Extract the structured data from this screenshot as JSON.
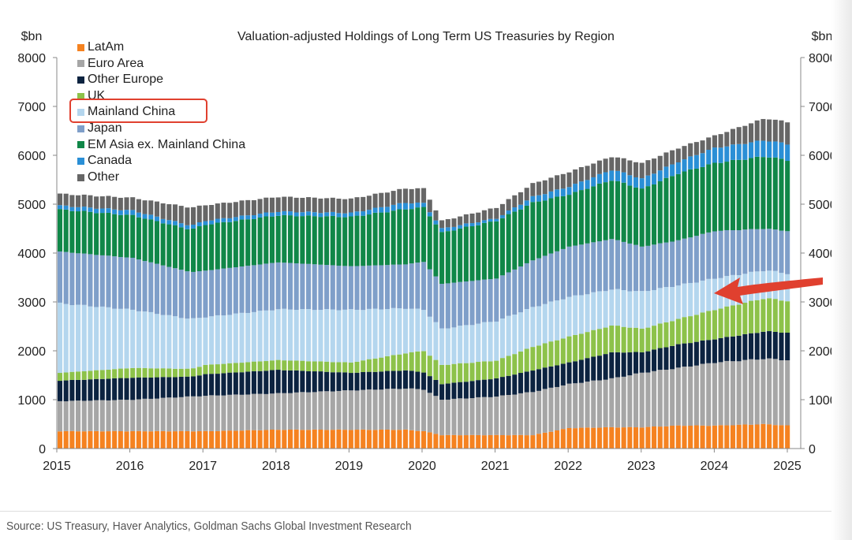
{
  "chart_data": {
    "type": "bar",
    "stacked": true,
    "title": "Valuation-adjusted Holdings of Long Term US Treasuries by Region",
    "ylabel_left": "$bn",
    "ylabel_right": "$bn",
    "ylim": [
      0,
      8000
    ],
    "yticks": [
      "0",
      "1000",
      "2000",
      "3000",
      "4000",
      "5000",
      "6000",
      "7000",
      "8000"
    ],
    "xlim": [
      2015,
      2025
    ],
    "xticks": [
      "2015",
      "2016",
      "2017",
      "2018",
      "2019",
      "2020",
      "2021",
      "2022",
      "2023",
      "2024",
      "2025"
    ],
    "frequency": "monthly (interpolated between anchor dates)",
    "x": [
      2015.0,
      2016.0,
      2016.8,
      2017.0,
      2018.0,
      2019.0,
      2019.75,
      2020.0,
      2020.25,
      2021.0,
      2021.5,
      2022.0,
      2022.6,
      2023.0,
      2023.5,
      2024.0,
      2024.7,
      2025.0
    ],
    "series": [
      {
        "name": "LatAm",
        "color": "#f58220",
        "values": [
          355,
          355,
          355,
          355,
          385,
          385,
          385,
          355,
          275,
          275,
          275,
          420,
          435,
          435,
          470,
          470,
          500,
          470
        ]
      },
      {
        "name": "Euro Area",
        "color": "#a6a6a6",
        "values": [
          615,
          645,
          710,
          725,
          745,
          805,
          845,
          855,
          725,
          790,
          885,
          900,
          1000,
          1115,
          1180,
          1290,
          1340,
          1340
        ]
      },
      {
        "name": "Other Europe",
        "color": "#0c2340",
        "values": [
          420,
          450,
          405,
          440,
          480,
          360,
          370,
          350,
          320,
          370,
          440,
          440,
          535,
          420,
          480,
          480,
          560,
          560
        ]
      },
      {
        "name": "UK",
        "color": "#8dc24a",
        "values": [
          160,
          200,
          160,
          190,
          200,
          210,
          350,
          440,
          390,
          365,
          480,
          530,
          550,
          480,
          520,
          600,
          680,
          650
        ]
      },
      {
        "name": "Mainland China",
        "color": "#b4d6ee",
        "values": [
          1420,
          1190,
          1020,
          980,
          1040,
          1080,
          920,
          840,
          740,
          810,
          810,
          810,
          740,
          760,
          690,
          640,
          570,
          560
        ]
      },
      {
        "name": "Japan",
        "color": "#7f9fc9",
        "values": [
          1060,
          1060,
          960,
          950,
          960,
          890,
          900,
          980,
          920,
          870,
          960,
          1030,
          1030,
          920,
          920,
          970,
          850,
          870
        ]
      },
      {
        "name": "EM Asia ex. Mainland China",
        "color": "#108748",
        "values": [
          860,
          870,
          870,
          940,
          960,
          1010,
          1130,
          1115,
          1050,
          1180,
          1180,
          1070,
          1210,
          1180,
          1370,
          1390,
          1480,
          1450
        ]
      },
      {
        "name": "Canada",
        "color": "#2a8fd6",
        "values": [
          80,
          100,
          80,
          80,
          80,
          80,
          130,
          85,
          80,
          50,
          120,
          160,
          210,
          210,
          240,
          310,
          330,
          330
        ]
      },
      {
        "name": "Other",
        "color": "#666666",
        "values": [
          240,
          260,
          370,
          320,
          300,
          290,
          290,
          300,
          160,
          220,
          270,
          300,
          270,
          320,
          280,
          250,
          450,
          450
        ]
      }
    ],
    "legend": [
      "LatAm",
      "Euro Area",
      "Other Europe",
      "UK",
      "Mainland China",
      "Japan",
      "EM Asia ex. Mainland China",
      "Canada",
      "Other"
    ],
    "legend_placement": "top-left",
    "highlighted_series": "Mainland China",
    "annotation_arrow_color": "#e0402f",
    "source": "Source: US Treasury, Haver Analytics, Goldman Sachs Global Investment Research"
  }
}
